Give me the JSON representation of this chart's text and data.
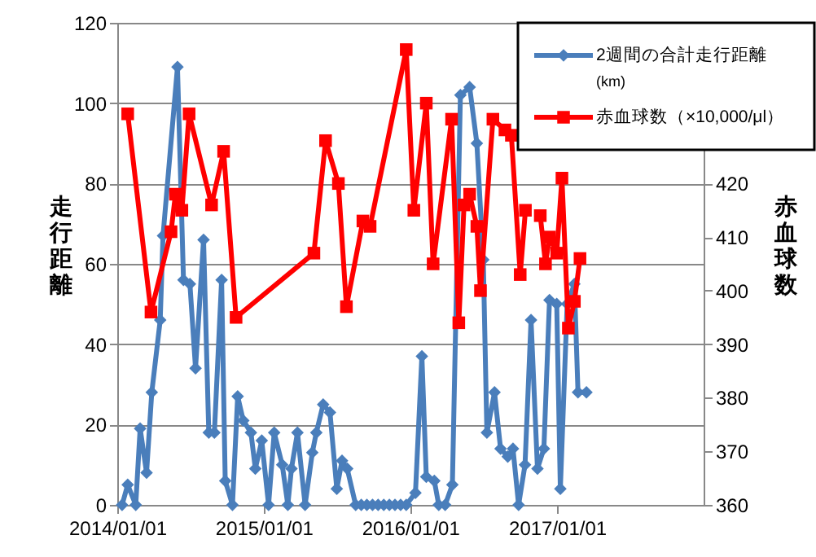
{
  "chart_data": {
    "type": "line",
    "ylabel": "走行距離",
    "y2label": "赤血球数",
    "xlim": [
      "2014-01-01",
      "2018-01-01"
    ],
    "xticks": [
      {
        "value": "2014-01-01",
        "label": "2014/01/01"
      },
      {
        "value": "2015-01-01",
        "label": "2015/01/01"
      },
      {
        "value": "2016-01-01",
        "label": "2016/01/01"
      },
      {
        "value": "2017-01-01",
        "label": "2017/01/01"
      }
    ],
    "ylim": [
      0,
      120
    ],
    "yticks": [
      0,
      20,
      40,
      60,
      80,
      100,
      120
    ],
    "y2lim": [
      360,
      450
    ],
    "y2ticks": [
      360,
      370,
      380,
      390,
      400,
      410,
      420
    ],
    "grid": "y",
    "legend": "top right",
    "series": [
      {
        "name": "2週間の合計走行距離(km)",
        "color": "#4a7ebb",
        "marker": "diamond",
        "axis": "y",
        "x": [
          "2014-01-13",
          "2014-01-27",
          "2014-02-16",
          "2014-02-27",
          "2014-03-15",
          "2014-03-28",
          "2014-04-18",
          "2014-04-25",
          "2014-05-31",
          "2014-06-15",
          "2014-07-01",
          "2014-07-15",
          "2014-08-04",
          "2014-08-17",
          "2014-08-31",
          "2014-09-18",
          "2014-09-27",
          "2014-10-15",
          "2014-10-28",
          "2014-11-11",
          "2014-11-30",
          "2014-12-11",
          "2014-12-27",
          "2015-01-13",
          "2015-01-27",
          "2015-02-16",
          "2015-03-02",
          "2015-03-11",
          "2015-03-26",
          "2015-04-14",
          "2015-05-02",
          "2015-05-12",
          "2015-05-29",
          "2015-06-15",
          "2015-07-02",
          "2015-07-15",
          "2015-07-28",
          "2015-08-18",
          "2015-09-01",
          "2015-09-15",
          "2015-09-29",
          "2015-10-13",
          "2015-10-27",
          "2015-11-10",
          "2015-11-24",
          "2015-12-08",
          "2015-12-22",
          "2016-01-14",
          "2016-01-30",
          "2016-02-10",
          "2016-03-01",
          "2016-03-12",
          "2016-03-28",
          "2016-04-15",
          "2016-05-05",
          "2016-05-28",
          "2016-06-15",
          "2016-07-01",
          "2016-07-10",
          "2016-07-29",
          "2016-08-13",
          "2016-08-31",
          "2016-09-13",
          "2016-09-27",
          "2016-10-13",
          "2016-10-28",
          "2016-11-13",
          "2016-11-29",
          "2016-12-13",
          "2016-12-31",
          "2017-01-09",
          "2017-01-26",
          "2017-02-13",
          "2017-02-22",
          "2017-03-15"
        ],
        "values": [
          0,
          5,
          0,
          19,
          8,
          28,
          46,
          67,
          109,
          56,
          55,
          34,
          66,
          18,
          18,
          56,
          6,
          0,
          27,
          21,
          18,
          9,
          16,
          0,
          18,
          10,
          0,
          9,
          18,
          0,
          13,
          18,
          25,
          23,
          4,
          11,
          9,
          0,
          0,
          0,
          0,
          0,
          0,
          0,
          0,
          0,
          0,
          3,
          37,
          7,
          6,
          0,
          0,
          5,
          102,
          104,
          90,
          61,
          18,
          28,
          14,
          12,
          14,
          0,
          10,
          46,
          9,
          14,
          51,
          50,
          4,
          50,
          55,
          28,
          28
        ]
      },
      {
        "name": "赤血球数（×10,000/μl）",
        "color": "#ff0000",
        "marker": "square",
        "axis": "y2",
        "x": [
          "2014-01-27",
          "2014-03-26",
          "2014-05-15",
          "2014-05-26",
          "2014-06-11",
          "2014-06-29",
          "2014-08-24",
          "2014-09-23",
          "2014-10-24",
          "2015-05-06",
          "2015-06-04",
          "2015-07-06",
          "2015-07-26",
          "2015-09-05",
          "2015-09-23",
          "2015-12-22",
          "2016-01-10",
          "2016-02-10",
          "2016-02-27",
          "2016-04-13",
          "2016-05-01",
          "2016-05-14",
          "2016-05-28",
          "2016-06-15",
          "2016-06-24",
          "2016-07-25",
          "2016-08-24",
          "2016-09-09",
          "2016-10-01",
          "2016-10-14",
          "2016-10-28",
          "2016-11-20",
          "2016-12-03",
          "2016-12-13",
          "2016-12-31",
          "2017-01-13",
          "2017-01-29",
          "2017-02-13",
          "2017-02-27"
        ],
        "values": [
          433,
          396,
          411,
          418,
          415,
          433,
          416,
          426,
          395,
          407,
          428,
          420,
          397,
          413,
          412,
          445,
          415,
          435,
          405,
          432,
          394,
          416,
          418,
          412,
          400,
          432,
          430,
          429,
          403,
          415,
          null,
          414,
          405,
          410,
          407,
          421,
          393,
          398,
          406
        ]
      }
    ]
  }
}
